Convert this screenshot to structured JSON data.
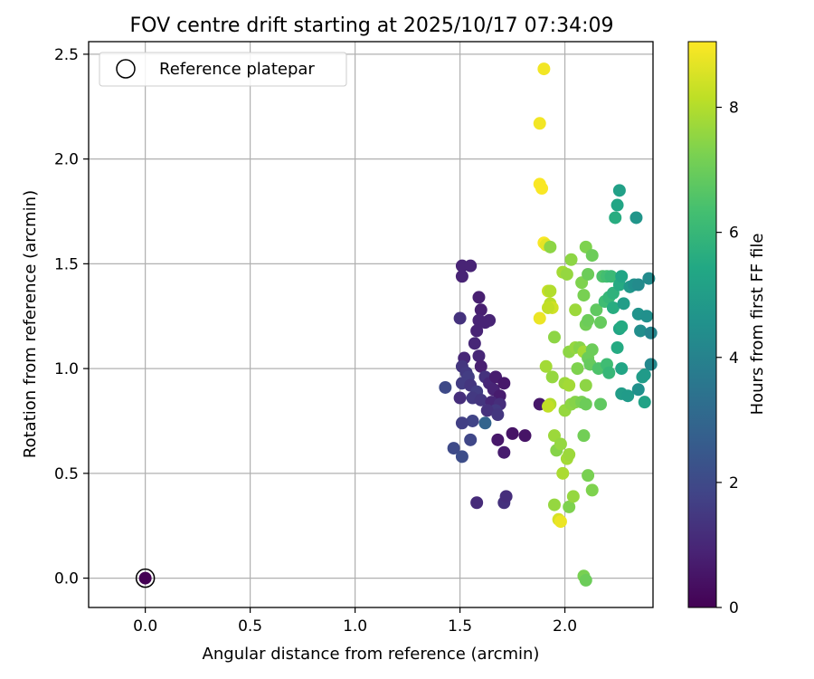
{
  "chart_data": {
    "type": "scatter",
    "title": "FOV centre drift starting at 2025/10/17 07:34:09",
    "xlabel": "Angular distance from reference (arcmin)",
    "ylabel": "Rotation from reference (arcmin)",
    "xlim": [
      -0.27,
      2.42
    ],
    "ylim": [
      -0.14,
      2.56
    ],
    "xticks": [
      0.0,
      0.5,
      1.0,
      1.5,
      2.0
    ],
    "xtick_labels": [
      "0.0",
      "0.5",
      "1.0",
      "1.5",
      "2.0"
    ],
    "yticks": [
      0.0,
      0.5,
      1.0,
      1.5,
      2.0,
      2.5
    ],
    "ytick_labels": [
      "0.0",
      "0.5",
      "1.0",
      "1.5",
      "2.0",
      "2.5"
    ],
    "grid": true,
    "legend": {
      "position": "top-left",
      "label": "Reference platepar"
    },
    "reference_point": {
      "x": 0.0,
      "y": 0.0
    },
    "colorbar": {
      "label": "Hours from first FF file",
      "min": 0,
      "max": 9.05,
      "ticks": [
        0,
        2,
        4,
        6,
        8
      ],
      "tick_labels": [
        "0",
        "2",
        "4",
        "6",
        "8"
      ],
      "colormap": "viridis"
    },
    "points": [
      {
        "x": 0.0,
        "y": 0.0,
        "c": 0.0
      },
      {
        "x": 1.51,
        "y": 1.49,
        "c": 0.9
      },
      {
        "x": 1.55,
        "y": 1.49,
        "c": 0.9
      },
      {
        "x": 1.51,
        "y": 1.44,
        "c": 0.9
      },
      {
        "x": 1.59,
        "y": 1.34,
        "c": 0.8
      },
      {
        "x": 1.6,
        "y": 1.28,
        "c": 0.8
      },
      {
        "x": 1.59,
        "y": 1.23,
        "c": 0.9
      },
      {
        "x": 1.62,
        "y": 1.22,
        "c": 0.9
      },
      {
        "x": 1.64,
        "y": 1.23,
        "c": 0.9
      },
      {
        "x": 1.58,
        "y": 1.18,
        "c": 0.9
      },
      {
        "x": 1.57,
        "y": 1.12,
        "c": 1.0
      },
      {
        "x": 1.5,
        "y": 1.24,
        "c": 1.3
      },
      {
        "x": 1.59,
        "y": 1.06,
        "c": 1.0
      },
      {
        "x": 1.6,
        "y": 1.01,
        "c": 0.8
      },
      {
        "x": 1.52,
        "y": 1.05,
        "c": 1.0
      },
      {
        "x": 1.51,
        "y": 1.01,
        "c": 1.4
      },
      {
        "x": 1.53,
        "y": 0.98,
        "c": 1.5
      },
      {
        "x": 1.54,
        "y": 0.96,
        "c": 1.6
      },
      {
        "x": 1.51,
        "y": 0.93,
        "c": 1.6
      },
      {
        "x": 1.55,
        "y": 0.92,
        "c": 1.4
      },
      {
        "x": 1.58,
        "y": 0.89,
        "c": 1.6
      },
      {
        "x": 1.56,
        "y": 0.86,
        "c": 1.5
      },
      {
        "x": 1.6,
        "y": 0.85,
        "c": 1.4
      },
      {
        "x": 1.5,
        "y": 0.86,
        "c": 1.2
      },
      {
        "x": 1.62,
        "y": 0.96,
        "c": 1.3
      },
      {
        "x": 1.64,
        "y": 0.93,
        "c": 1.0
      },
      {
        "x": 1.66,
        "y": 0.9,
        "c": 0.9
      },
      {
        "x": 1.67,
        "y": 0.96,
        "c": 0.7
      },
      {
        "x": 1.71,
        "y": 0.93,
        "c": 0.6
      },
      {
        "x": 1.69,
        "y": 0.87,
        "c": 0.7
      },
      {
        "x": 1.65,
        "y": 0.84,
        "c": 1.0
      },
      {
        "x": 1.69,
        "y": 0.83,
        "c": 1.2
      },
      {
        "x": 1.67,
        "y": 0.8,
        "c": 1.5
      },
      {
        "x": 1.63,
        "y": 0.8,
        "c": 1.3
      },
      {
        "x": 1.68,
        "y": 0.78,
        "c": 1.4
      },
      {
        "x": 1.62,
        "y": 0.74,
        "c": 2.9
      },
      {
        "x": 1.56,
        "y": 0.75,
        "c": 1.8
      },
      {
        "x": 1.51,
        "y": 0.74,
        "c": 1.7
      },
      {
        "x": 1.43,
        "y": 0.91,
        "c": 2.0
      },
      {
        "x": 1.55,
        "y": 0.66,
        "c": 1.9
      },
      {
        "x": 1.47,
        "y": 0.62,
        "c": 2.0
      },
      {
        "x": 1.51,
        "y": 0.58,
        "c": 2.1
      },
      {
        "x": 1.68,
        "y": 0.66,
        "c": 0.6
      },
      {
        "x": 1.75,
        "y": 0.69,
        "c": 0.5
      },
      {
        "x": 1.81,
        "y": 0.68,
        "c": 0.5
      },
      {
        "x": 1.71,
        "y": 0.6,
        "c": 0.7
      },
      {
        "x": 1.58,
        "y": 0.36,
        "c": 1.1
      },
      {
        "x": 1.71,
        "y": 0.36,
        "c": 1.3
      },
      {
        "x": 1.72,
        "y": 0.39,
        "c": 1.2
      },
      {
        "x": 1.88,
        "y": 0.83,
        "c": 0.6
      },
      {
        "x": 1.9,
        "y": 2.43,
        "c": 8.9
      },
      {
        "x": 1.88,
        "y": 2.17,
        "c": 8.9
      },
      {
        "x": 1.88,
        "y": 1.88,
        "c": 9.0
      },
      {
        "x": 1.89,
        "y": 1.86,
        "c": 9.0
      },
      {
        "x": 1.9,
        "y": 1.6,
        "c": 9.0
      },
      {
        "x": 1.91,
        "y": 1.59,
        "c": 8.7
      },
      {
        "x": 1.93,
        "y": 1.58,
        "c": 7.5
      },
      {
        "x": 1.92,
        "y": 1.37,
        "c": 8.3
      },
      {
        "x": 1.93,
        "y": 1.37,
        "c": 8.0
      },
      {
        "x": 1.93,
        "y": 1.31,
        "c": 8.1
      },
      {
        "x": 1.94,
        "y": 1.29,
        "c": 8.4
      },
      {
        "x": 1.92,
        "y": 1.29,
        "c": 8.2
      },
      {
        "x": 1.88,
        "y": 1.24,
        "c": 8.8
      },
      {
        "x": 1.95,
        "y": 1.15,
        "c": 7.5
      },
      {
        "x": 1.91,
        "y": 1.01,
        "c": 7.8
      },
      {
        "x": 1.94,
        "y": 0.96,
        "c": 7.6
      },
      {
        "x": 1.93,
        "y": 0.83,
        "c": 8.0
      },
      {
        "x": 1.92,
        "y": 0.82,
        "c": 8.2
      },
      {
        "x": 1.95,
        "y": 0.68,
        "c": 7.7
      },
      {
        "x": 1.96,
        "y": 0.61,
        "c": 7.4
      },
      {
        "x": 1.98,
        "y": 0.64,
        "c": 7.6
      },
      {
        "x": 1.99,
        "y": 0.5,
        "c": 7.9
      },
      {
        "x": 2.01,
        "y": 0.57,
        "c": 7.8
      },
      {
        "x": 2.02,
        "y": 0.59,
        "c": 7.7
      },
      {
        "x": 1.95,
        "y": 0.35,
        "c": 7.6
      },
      {
        "x": 1.97,
        "y": 0.28,
        "c": 8.5
      },
      {
        "x": 1.98,
        "y": 0.27,
        "c": 8.8
      },
      {
        "x": 2.02,
        "y": 0.34,
        "c": 7.3
      },
      {
        "x": 2.04,
        "y": 0.39,
        "c": 7.6
      },
      {
        "x": 1.99,
        "y": 1.46,
        "c": 7.8
      },
      {
        "x": 2.01,
        "y": 1.45,
        "c": 7.6
      },
      {
        "x": 2.03,
        "y": 1.52,
        "c": 7.5
      },
      {
        "x": 2.05,
        "y": 1.28,
        "c": 7.7
      },
      {
        "x": 2.08,
        "y": 1.41,
        "c": 7.3
      },
      {
        "x": 2.09,
        "y": 1.35,
        "c": 7.2
      },
      {
        "x": 2.1,
        "y": 1.21,
        "c": 7.1
      },
      {
        "x": 2.11,
        "y": 1.23,
        "c": 7.0
      },
      {
        "x": 2.1,
        "y": 1.58,
        "c": 7.3
      },
      {
        "x": 2.13,
        "y": 1.54,
        "c": 7.0
      },
      {
        "x": 2.11,
        "y": 1.45,
        "c": 7.0
      },
      {
        "x": 2.02,
        "y": 1.08,
        "c": 7.5
      },
      {
        "x": 2.05,
        "y": 1.1,
        "c": 7.6
      },
      {
        "x": 2.07,
        "y": 1.1,
        "c": 7.4
      },
      {
        "x": 2.06,
        "y": 1.0,
        "c": 7.3
      },
      {
        "x": 2.09,
        "y": 1.08,
        "c": 7.8
      },
      {
        "x": 2.11,
        "y": 1.05,
        "c": 7.0
      },
      {
        "x": 2.12,
        "y": 1.02,
        "c": 6.9
      },
      {
        "x": 2.13,
        "y": 1.09,
        "c": 7.0
      },
      {
        "x": 2.0,
        "y": 0.93,
        "c": 7.7
      },
      {
        "x": 2.02,
        "y": 0.92,
        "c": 7.8
      },
      {
        "x": 2.1,
        "y": 0.92,
        "c": 7.5
      },
      {
        "x": 2.0,
        "y": 0.8,
        "c": 7.6
      },
      {
        "x": 2.03,
        "y": 0.83,
        "c": 7.5
      },
      {
        "x": 2.05,
        "y": 0.84,
        "c": 7.4
      },
      {
        "x": 2.08,
        "y": 0.84,
        "c": 7.2
      },
      {
        "x": 2.1,
        "y": 0.83,
        "c": 7.0
      },
      {
        "x": 2.09,
        "y": 0.68,
        "c": 7.1
      },
      {
        "x": 2.11,
        "y": 0.49,
        "c": 7.2
      },
      {
        "x": 2.13,
        "y": 0.42,
        "c": 7.3
      },
      {
        "x": 2.09,
        "y": 0.01,
        "c": 7.2
      },
      {
        "x": 2.1,
        "y": -0.01,
        "c": 7.0
      },
      {
        "x": 2.15,
        "y": 1.28,
        "c": 6.8
      },
      {
        "x": 2.16,
        "y": 1.0,
        "c": 6.5
      },
      {
        "x": 2.17,
        "y": 0.83,
        "c": 6.8
      },
      {
        "x": 2.17,
        "y": 1.22,
        "c": 6.9
      },
      {
        "x": 2.18,
        "y": 1.44,
        "c": 6.5
      },
      {
        "x": 2.2,
        "y": 1.44,
        "c": 6.3
      },
      {
        "x": 2.22,
        "y": 1.44,
        "c": 6.1
      },
      {
        "x": 2.19,
        "y": 1.32,
        "c": 6.2
      },
      {
        "x": 2.21,
        "y": 1.34,
        "c": 6.0
      },
      {
        "x": 2.23,
        "y": 1.36,
        "c": 5.8
      },
      {
        "x": 2.2,
        "y": 1.02,
        "c": 6.2
      },
      {
        "x": 2.21,
        "y": 0.98,
        "c": 6.0
      },
      {
        "x": 2.23,
        "y": 1.29,
        "c": 5.6
      },
      {
        "x": 2.24,
        "y": 1.72,
        "c": 5.6
      },
      {
        "x": 2.25,
        "y": 1.78,
        "c": 5.3
      },
      {
        "x": 2.26,
        "y": 1.85,
        "c": 5.1
      },
      {
        "x": 2.26,
        "y": 1.4,
        "c": 5.5
      },
      {
        "x": 2.27,
        "y": 1.44,
        "c": 5.3
      },
      {
        "x": 2.28,
        "y": 1.31,
        "c": 5.0
      },
      {
        "x": 2.26,
        "y": 1.19,
        "c": 5.3
      },
      {
        "x": 2.27,
        "y": 1.2,
        "c": 5.5
      },
      {
        "x": 2.25,
        "y": 1.1,
        "c": 5.5
      },
      {
        "x": 2.27,
        "y": 1.0,
        "c": 5.3
      },
      {
        "x": 2.27,
        "y": 0.88,
        "c": 5.0
      },
      {
        "x": 2.3,
        "y": 0.87,
        "c": 4.9
      },
      {
        "x": 2.31,
        "y": 1.39,
        "c": 4.8
      },
      {
        "x": 2.33,
        "y": 1.4,
        "c": 4.5
      },
      {
        "x": 2.35,
        "y": 1.4,
        "c": 4.3
      },
      {
        "x": 2.34,
        "y": 1.72,
        "c": 4.7
      },
      {
        "x": 2.35,
        "y": 1.26,
        "c": 4.6
      },
      {
        "x": 2.36,
        "y": 1.18,
        "c": 4.4
      },
      {
        "x": 2.35,
        "y": 0.9,
        "c": 4.5
      },
      {
        "x": 2.37,
        "y": 0.96,
        "c": 5.0
      },
      {
        "x": 2.38,
        "y": 0.97,
        "c": 4.9
      },
      {
        "x": 2.38,
        "y": 0.84,
        "c": 5.2
      },
      {
        "x": 2.4,
        "y": 1.43,
        "c": 4.3
      },
      {
        "x": 2.39,
        "y": 1.25,
        "c": 4.5
      },
      {
        "x": 2.41,
        "y": 1.17,
        "c": 4.1
      },
      {
        "x": 2.41,
        "y": 1.02,
        "c": 4.2
      }
    ]
  }
}
